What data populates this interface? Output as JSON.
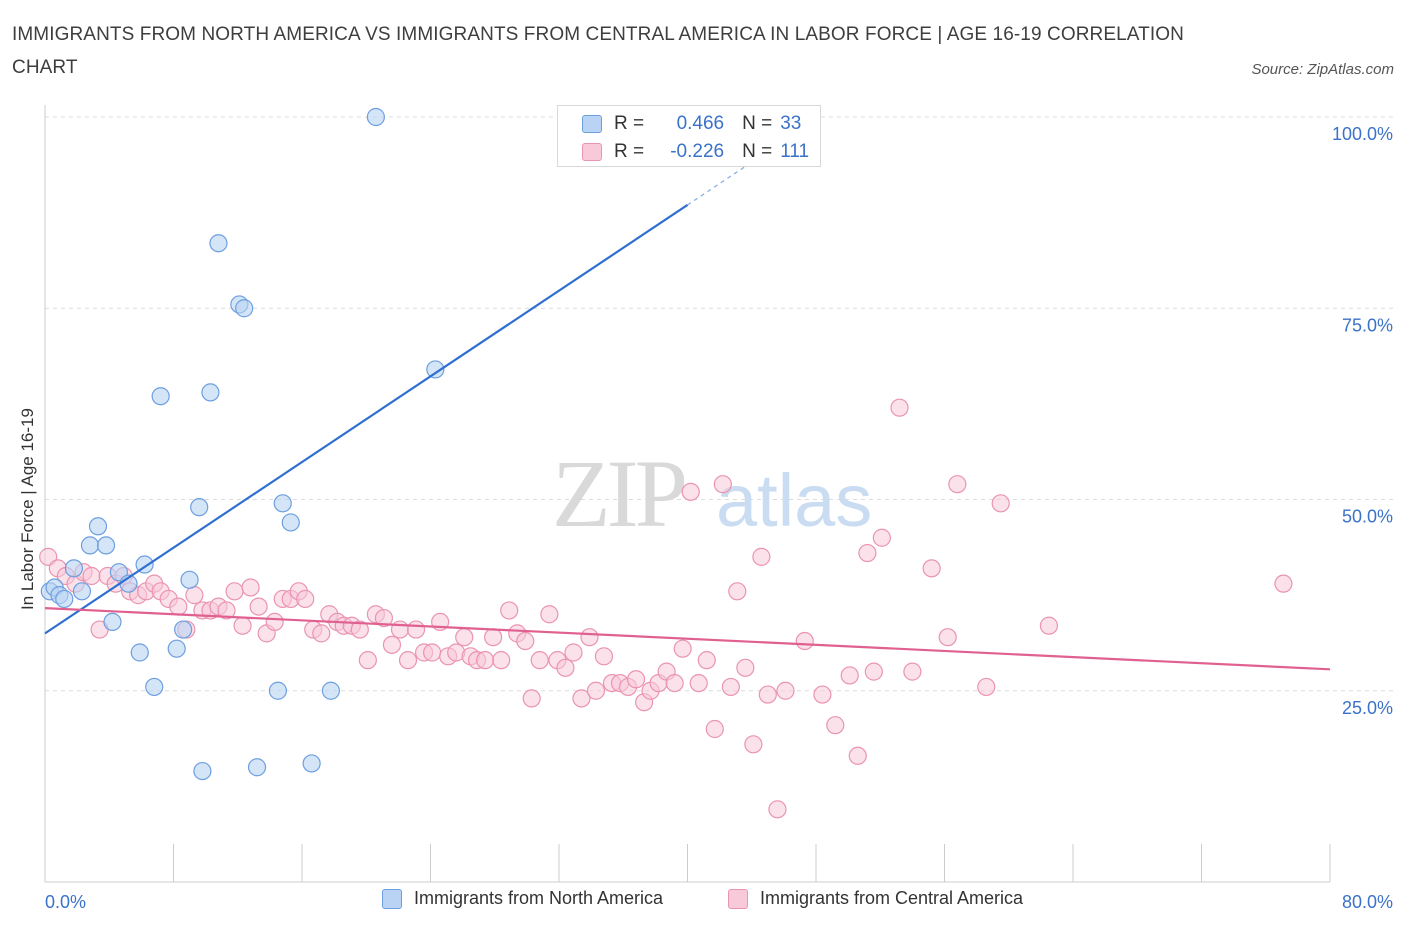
{
  "header": {
    "title": "IMMIGRANTS FROM NORTH AMERICA VS IMMIGRANTS FROM CENTRAL AMERICA IN LABOR FORCE | AGE 16-19 CORRELATION CHART",
    "source": "Source: ZipAtlas.com"
  },
  "colors": {
    "blue_fill": "#b9d3f4",
    "blue_stroke": "#6d9fe0",
    "blue_line": "#2e6fd0",
    "pink_fill": "#f8c9d8",
    "pink_stroke": "#ea94b1",
    "pink_line": "#e0608f",
    "axis_text": "#3b72c9"
  },
  "legend": {
    "r_label": "R =",
    "n_label": "N =",
    "series1": {
      "r": "0.466",
      "n": "33"
    },
    "series2": {
      "r": "-0.226",
      "n": "111"
    }
  },
  "watermark": {
    "zip": "ZIP",
    "atlas": "atlas"
  },
  "chart_data": {
    "type": "scatter",
    "title": "IMMIGRANTS FROM NORTH AMERICA VS IMMIGRANTS FROM CENTRAL AMERICA IN LABOR FORCE | AGE 16-19 CORRELATION CHART",
    "xlabel": "",
    "ylabel": "In Labor Force | Age 16-19",
    "xlim": [
      0,
      80
    ],
    "ylim": [
      0,
      100
    ],
    "x_tick_labels": [
      "0.0%",
      "80.0%"
    ],
    "y_ticks": [
      25,
      50,
      75,
      100
    ],
    "y_tick_labels": [
      "25.0%",
      "50.0%",
      "75.0%",
      "100.0%"
    ],
    "grid": true,
    "series": [
      {
        "name": "Immigrants from North America",
        "r": 0.466,
        "n": 33,
        "trend": {
          "x0": 0,
          "y0": 32.5,
          "x1": 40,
          "y1": 88.5,
          "dashed_to_x": 48
        },
        "points": [
          [
            0.3,
            38
          ],
          [
            0.6,
            38.5
          ],
          [
            0.9,
            37.5
          ],
          [
            1.2,
            37
          ],
          [
            1.8,
            41
          ],
          [
            2.3,
            38
          ],
          [
            2.8,
            44
          ],
          [
            3.3,
            46.5
          ],
          [
            3.8,
            44
          ],
          [
            4.2,
            34
          ],
          [
            4.6,
            40.5
          ],
          [
            5.2,
            39
          ],
          [
            5.9,
            30
          ],
          [
            6.2,
            41.5
          ],
          [
            6.8,
            25.5
          ],
          [
            7.2,
            63.5
          ],
          [
            8.2,
            30.5
          ],
          [
            8.6,
            33
          ],
          [
            9.0,
            39.5
          ],
          [
            9.6,
            49
          ],
          [
            9.8,
            14.5
          ],
          [
            10.3,
            64
          ],
          [
            10.8,
            83.5
          ],
          [
            12.1,
            75.5
          ],
          [
            12.4,
            75
          ],
          [
            13.2,
            15
          ],
          [
            14.5,
            25
          ],
          [
            14.8,
            49.5
          ],
          [
            15.3,
            47
          ],
          [
            16.6,
            15.5
          ],
          [
            17.8,
            25
          ],
          [
            20.6,
            100
          ],
          [
            24.3,
            67
          ]
        ]
      },
      {
        "name": "Immigrants from Central America",
        "r": -0.226,
        "n": 111,
        "trend": {
          "x0": 0,
          "y0": 35.8,
          "x1": 80,
          "y1": 27.8
        },
        "points": [
          [
            0.2,
            42.5
          ],
          [
            0.8,
            41
          ],
          [
            1.3,
            40
          ],
          [
            1.9,
            39
          ],
          [
            2.4,
            40.5
          ],
          [
            2.9,
            40
          ],
          [
            3.4,
            33
          ],
          [
            3.9,
            40
          ],
          [
            4.4,
            39
          ],
          [
            4.9,
            40
          ],
          [
            5.3,
            38
          ],
          [
            5.8,
            37.5
          ],
          [
            6.3,
            38
          ],
          [
            6.8,
            39
          ],
          [
            7.2,
            38
          ],
          [
            7.7,
            37
          ],
          [
            8.3,
            36
          ],
          [
            8.8,
            33
          ],
          [
            9.3,
            37.5
          ],
          [
            9.8,
            35.5
          ],
          [
            10.3,
            35.5
          ],
          [
            10.8,
            36
          ],
          [
            11.3,
            35.5
          ],
          [
            11.8,
            38
          ],
          [
            12.3,
            33.5
          ],
          [
            12.8,
            38.5
          ],
          [
            13.3,
            36
          ],
          [
            13.8,
            32.5
          ],
          [
            14.3,
            34
          ],
          [
            14.8,
            37
          ],
          [
            15.3,
            37
          ],
          [
            15.8,
            38
          ],
          [
            16.2,
            37
          ],
          [
            16.7,
            33
          ],
          [
            17.2,
            32.5
          ],
          [
            17.7,
            35
          ],
          [
            18.2,
            34
          ],
          [
            18.6,
            33.5
          ],
          [
            19.1,
            33.5
          ],
          [
            19.6,
            33
          ],
          [
            20.1,
            29
          ],
          [
            20.6,
            35
          ],
          [
            21.1,
            34.5
          ],
          [
            21.6,
            31
          ],
          [
            22.1,
            33
          ],
          [
            22.6,
            29
          ],
          [
            23.1,
            33
          ],
          [
            23.6,
            30
          ],
          [
            24.1,
            30
          ],
          [
            24.6,
            34
          ],
          [
            25.1,
            29.5
          ],
          [
            25.6,
            30
          ],
          [
            26.1,
            32
          ],
          [
            26.5,
            29.5
          ],
          [
            26.9,
            29
          ],
          [
            27.4,
            29
          ],
          [
            27.9,
            32
          ],
          [
            28.4,
            29
          ],
          [
            28.9,
            35.5
          ],
          [
            29.4,
            32.5
          ],
          [
            29.9,
            31.5
          ],
          [
            30.3,
            24
          ],
          [
            30.8,
            29
          ],
          [
            31.4,
            35
          ],
          [
            31.9,
            29
          ],
          [
            32.4,
            28
          ],
          [
            32.9,
            30
          ],
          [
            33.4,
            24
          ],
          [
            33.9,
            32
          ],
          [
            34.3,
            25
          ],
          [
            34.8,
            29.5
          ],
          [
            35.3,
            26
          ],
          [
            35.8,
            26
          ],
          [
            36.3,
            25.5
          ],
          [
            36.8,
            26.5
          ],
          [
            37.3,
            23.5
          ],
          [
            37.7,
            25
          ],
          [
            38.2,
            26
          ],
          [
            38.7,
            27.5
          ],
          [
            39.2,
            26
          ],
          [
            39.7,
            30.5
          ],
          [
            40.2,
            51
          ],
          [
            40.7,
            26
          ],
          [
            41.2,
            29
          ],
          [
            41.7,
            20
          ],
          [
            42.2,
            52
          ],
          [
            42.7,
            25.5
          ],
          [
            43.1,
            38
          ],
          [
            43.6,
            28
          ],
          [
            44.1,
            18
          ],
          [
            44.6,
            42.5
          ],
          [
            45.0,
            24.5
          ],
          [
            45.6,
            9.5
          ],
          [
            46.1,
            25
          ],
          [
            47.3,
            31.5
          ],
          [
            48.4,
            24.5
          ],
          [
            49.2,
            20.5
          ],
          [
            50.1,
            27
          ],
          [
            50.6,
            16.5
          ],
          [
            51.2,
            43
          ],
          [
            51.6,
            27.5
          ],
          [
            52.1,
            45
          ],
          [
            53.2,
            62
          ],
          [
            54.0,
            27.5
          ],
          [
            55.2,
            41
          ],
          [
            56.2,
            32
          ],
          [
            56.8,
            52
          ],
          [
            58.6,
            25.5
          ],
          [
            59.5,
            49.5
          ],
          [
            62.5,
            33.5
          ],
          [
            77.1,
            39
          ]
        ]
      }
    ]
  },
  "bottom_legend": {
    "series1_label": "Immigrants from North America",
    "series2_label": "Immigrants from Central America"
  }
}
